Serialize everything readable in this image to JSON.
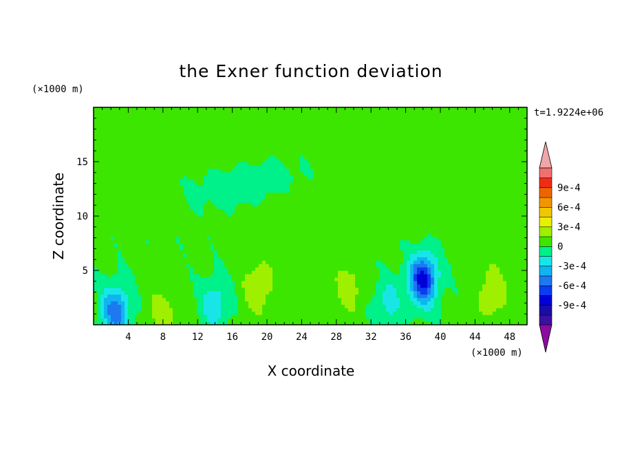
{
  "chart_data": {
    "type": "heatmap",
    "title": "the Exner function deviation",
    "xlabel": "X coordinate",
    "ylabel": "Z coordinate",
    "x_unit": "(×1000 m)",
    "y_unit": "(×1000 m)",
    "time_label": "t=1.9224e+06",
    "xlim": [
      0,
      50
    ],
    "ylim": [
      0,
      20
    ],
    "x_ticks": [
      4,
      8,
      12,
      16,
      20,
      24,
      28,
      32,
      36,
      40,
      44,
      48
    ],
    "x_tick_labels": [
      "4",
      "8",
      "12",
      "16",
      "20",
      "24",
      "28",
      "32",
      "36",
      "40",
      "44",
      "48"
    ],
    "y_ticks": [
      5,
      10,
      15
    ],
    "y_tick_labels": [
      "5",
      "10",
      "15"
    ],
    "colorbar": {
      "levels": [
        -0.0012,
        -0.00105,
        -0.0009,
        -0.00075,
        -0.0006,
        -0.00045,
        -0.0003,
        -0.00015,
        0,
        0.00015,
        0.0003,
        0.00045,
        0.0006,
        0.00075,
        0.0009,
        0.00105,
        0.0012
      ],
      "tick_values": [
        0.0009,
        0.0006,
        0.0003,
        0,
        -0.0003,
        -0.0006,
        -0.0009
      ],
      "tick_labels": [
        "9e-4",
        "6e-4",
        "3e-4",
        "0",
        "-3e-4",
        "-6e-4",
        "-9e-4"
      ],
      "colors": [
        "#7a0b9e",
        "#3c10a0",
        "#1a0ca6",
        "#0000d8",
        "#0a3cf0",
        "#1e78f0",
        "#10b4f0",
        "#18e6e6",
        "#00f08a",
        "#3ce600",
        "#9ef000",
        "#e6f000",
        "#f0c800",
        "#f09600",
        "#f06400",
        "#f02d14",
        "#f07070",
        "#f0a6a6"
      ],
      "over_color": "#f0a6a6",
      "under_color": "#8c0ca0"
    },
    "field_features": [
      {
        "x": 2.5,
        "z": 1.3,
        "value": -0.0006
      },
      {
        "x": 38,
        "z": 4.2,
        "value": -0.00085
      },
      {
        "x": 14,
        "z": 2.0,
        "value": -0.0003
      },
      {
        "x": 34,
        "z": 2.0,
        "value": -0.00025
      },
      {
        "x": 19,
        "z": 3.5,
        "value": 0.00025
      },
      {
        "x": 29.5,
        "z": 3.5,
        "value": 0.0002
      },
      {
        "x": 46,
        "z": 3.0,
        "value": 0.00025
      },
      {
        "x": 8,
        "z": 1.0,
        "value": 0.0002
      },
      {
        "x": 25,
        "z": 10,
        "value": 0.0001
      },
      {
        "x": 15,
        "z": 17,
        "value": 8e-05
      },
      {
        "x": 45,
        "z": 16,
        "value": 8e-05
      },
      {
        "x": 15,
        "z": 12.5,
        "value": -5e-05
      },
      {
        "x": 20,
        "z": 13.5,
        "value": -8e-05
      }
    ]
  }
}
